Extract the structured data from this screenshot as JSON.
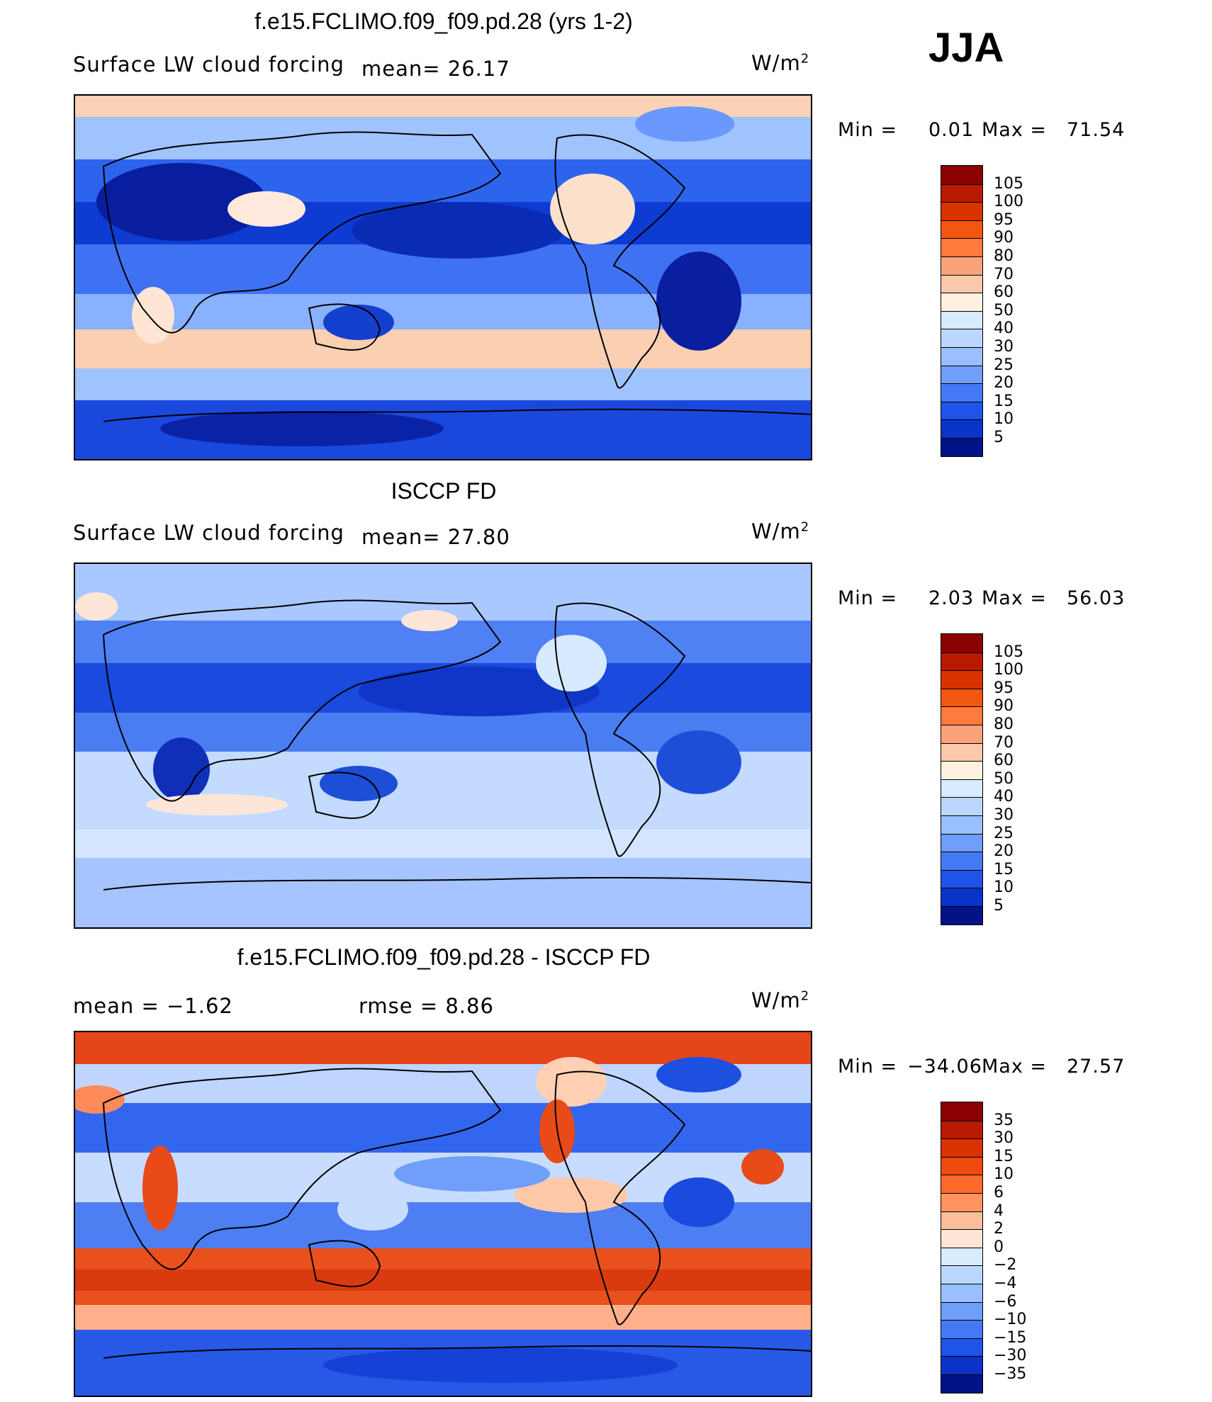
{
  "season": "JJA",
  "panels": [
    {
      "title": "f.e15.FCLIMO.f09_f09.pd.28 (yrs 1-2)",
      "variable": "Surface LW cloud forcing",
      "stat1": "mean=   26.17",
      "stat2": "",
      "units": "W/m",
      "units_sup": "2",
      "min_label": "Min  =",
      "min_value": "0.01",
      "max_label": "Max  =",
      "max_value": "71.54",
      "map_name": "model-lw-cloud-forcing-map"
    },
    {
      "title": "ISCCP FD",
      "variable": "Surface LW cloud forcing",
      "stat1": "mean=   27.80",
      "stat2": "",
      "units": "W/m",
      "units_sup": "2",
      "min_label": "Min  =",
      "min_value": "2.03",
      "max_label": "Max  =",
      "max_value": "56.03",
      "map_name": "obs-lw-cloud-forcing-map"
    },
    {
      "title": "f.e15.FCLIMO.f09_f09.pd.28 - ISCCP FD",
      "variable": "",
      "stat1": "mean  =   −1.62",
      "stat2": "rmse  =    8.86",
      "units": "W/m",
      "units_sup": "2",
      "min_label": "Min  =",
      "min_value": "−34.06",
      "max_label": "Max  =",
      "max_value": "27.57",
      "map_name": "difference-map"
    }
  ],
  "colorbars": {
    "abs": {
      "labels": [
        "105",
        "100",
        "95",
        "90",
        "80",
        "70",
        "60",
        "50",
        "40",
        "30",
        "25",
        "20",
        "15",
        "10",
        "5"
      ],
      "colors": [
        "#8b0000",
        "#b81a00",
        "#d93300",
        "#f25710",
        "#ff7a3c",
        "#f9a27c",
        "#fbc8ac",
        "#fff0e0",
        "#d8ebff",
        "#bcd7ff",
        "#9abfff",
        "#6f9ffb",
        "#4479f5",
        "#1e55e8",
        "#0a33c8",
        "#001488"
      ]
    },
    "diff": {
      "labels": [
        "35",
        "30",
        "15",
        "10",
        "6",
        "4",
        "2",
        "0",
        "−2",
        "−4",
        "−6",
        "−10",
        "−15",
        "−30",
        "−35"
      ],
      "colors": [
        "#8b0000",
        "#b81a00",
        "#d93300",
        "#f04a10",
        "#ff6a2c",
        "#ff9462",
        "#fbbd9a",
        "#fee6d6",
        "#d8ebff",
        "#bcd7ff",
        "#9abfff",
        "#6f9ffb",
        "#4479f5",
        "#1e55e8",
        "#0a33c8",
        "#001488"
      ]
    }
  }
}
